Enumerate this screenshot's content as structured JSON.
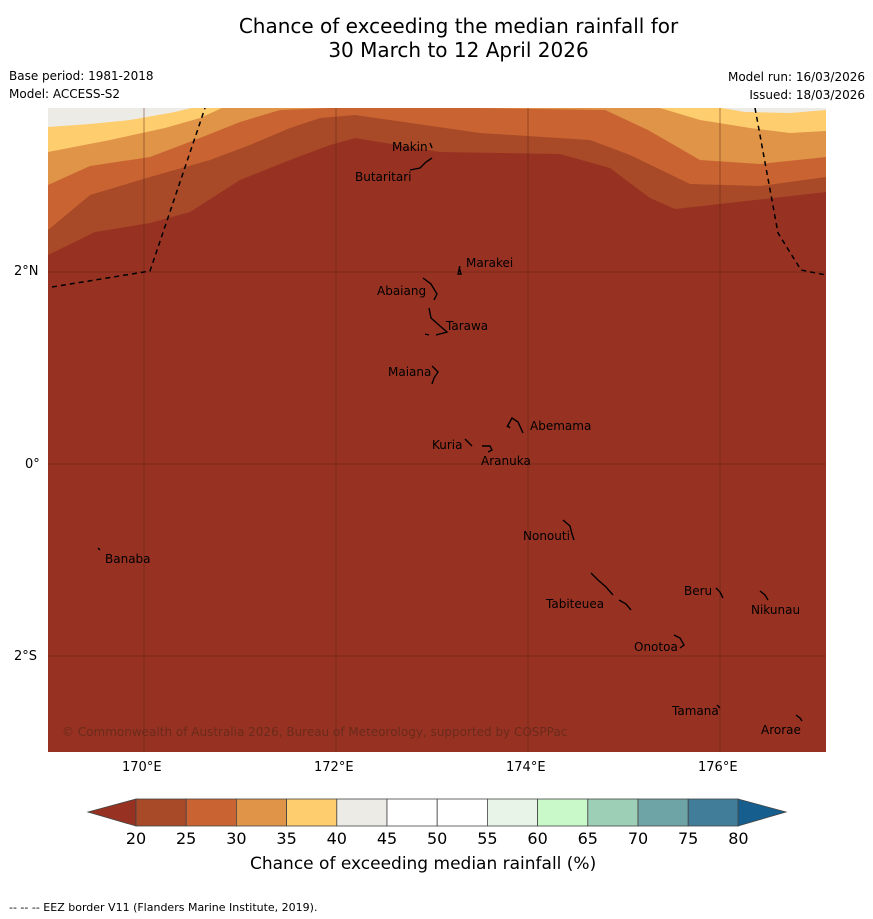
{
  "title": {
    "line1": "Chance of exceeding the median rainfall for",
    "line2": "30 March to 12 April 2026"
  },
  "meta": {
    "base_period": "Base period: 1981-2018",
    "model": "Model: ACCESS-S2",
    "model_run": "Model run: 16/03/2026",
    "issued": "Issued: 18/03/2026"
  },
  "axes": {
    "lat_labels": [
      "2°N",
      "0°",
      "2°S"
    ],
    "lon_labels": [
      "170°E",
      "172°E",
      "174°E",
      "176°E"
    ],
    "lat_values": [
      2,
      0,
      -2
    ],
    "lon_values": [
      170,
      172,
      174,
      176
    ],
    "lon_range": [
      169,
      177.1
    ],
    "lat_range": [
      -2.98,
      3.7
    ]
  },
  "places": [
    {
      "name": "Makin"
    },
    {
      "name": "Butaritari"
    },
    {
      "name": "Marakei"
    },
    {
      "name": "Abaiang"
    },
    {
      "name": "Tarawa"
    },
    {
      "name": "Maiana"
    },
    {
      "name": "Abemama"
    },
    {
      "name": "Kuria"
    },
    {
      "name": "Aranuka"
    },
    {
      "name": "Banaba"
    },
    {
      "name": "Nonouti"
    },
    {
      "name": "Beru"
    },
    {
      "name": "Tabiteuea"
    },
    {
      "name": "Nikunau"
    },
    {
      "name": "Onotoa"
    },
    {
      "name": "Tamana"
    },
    {
      "name": "Arorae"
    }
  ],
  "copyright": "© Commonwealth of Australia 2026, Bureau of Meteorology, supported by COSPPac",
  "colorbar": {
    "ticks": [
      "20",
      "25",
      "30",
      "35",
      "40",
      "45",
      "50",
      "55",
      "60",
      "65",
      "70",
      "75",
      "80"
    ],
    "colors": [
      "#a84a28",
      "#c96432",
      "#e09448",
      "#fdcd6e",
      "#ecebe6",
      "#ffffff",
      "#ffffff",
      "#e8f4e8",
      "#c9f9c9",
      "#9dcfb6",
      "#6fa4a6",
      "#417c99"
    ],
    "under_color": "#973222",
    "over_color": "#155e8e",
    "label": "Chance of exceeding median rainfall (%)"
  },
  "field_colors": {
    "lt20": "#973222",
    "c20_25": "#a84a28",
    "c25_30": "#c96432",
    "c30_35": "#e09448",
    "c35_40": "#fdcd6e",
    "c40_45": "#ecebe6"
  },
  "footer": "--  --  -- EEZ border V11 (Flanders Marine Institute, 2019)."
}
